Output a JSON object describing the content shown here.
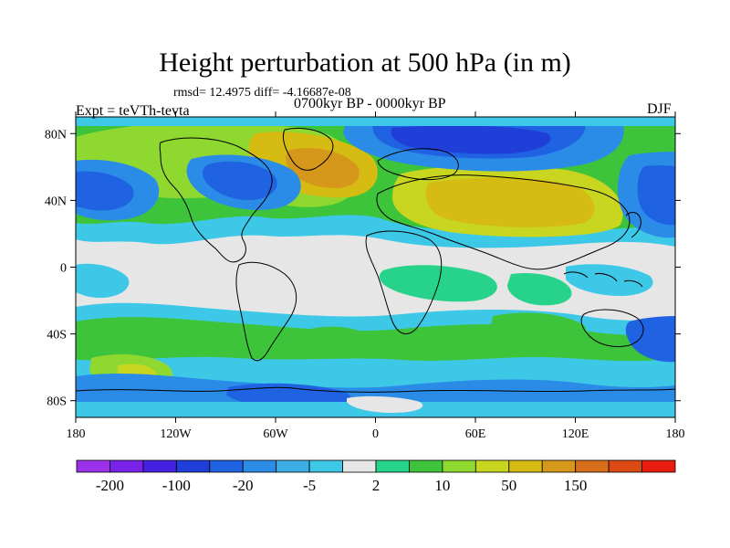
{
  "title": "Height perturbation at 500 hPa (in m)",
  "stats": "rmsd= 12.4975 diff= -4.16687e-08",
  "experiment": "Expt = teVTh-tevta",
  "period": "0700kyr BP - 0000kyr BP",
  "season": "DJF",
  "x_ticks": [
    "180",
    "120W",
    "60W",
    "0",
    "60E",
    "120E",
    "180"
  ],
  "y_ticks": [
    "80N",
    "40N",
    "0",
    "40S",
    "80S"
  ],
  "colorbar": {
    "colors": [
      "#9b31e8",
      "#7a23e8",
      "#4421e0",
      "#1f3fd8",
      "#1f62e2",
      "#2b8ce8",
      "#3aaee5",
      "#3ec8e8",
      "#e6e6e6",
      "#27d38a",
      "#3ec43a",
      "#8fd82f",
      "#c8d61f",
      "#d6bb12",
      "#d6981a",
      "#d66e1a",
      "#dc4a14",
      "#e81d0e"
    ],
    "labels": [
      "-200",
      "-100",
      "-20",
      "-5",
      "2",
      "10",
      "50",
      "150"
    ]
  },
  "palette": {
    "deep_neg": "#1f3fd8",
    "strong_neg": "#1f62e2",
    "mid_neg": "#2b8ce8",
    "weak_neg": "#3aaee5",
    "faint_neg": "#3ec8e8",
    "neutral": "#e6e6e6",
    "faint_pos": "#27d38a",
    "weak_pos": "#3ec43a",
    "mid_pos": "#8fd82f",
    "strong_pos": "#c8d61f",
    "peak_pos": "#d6bb12",
    "orange_pos": "#d6981a"
  }
}
